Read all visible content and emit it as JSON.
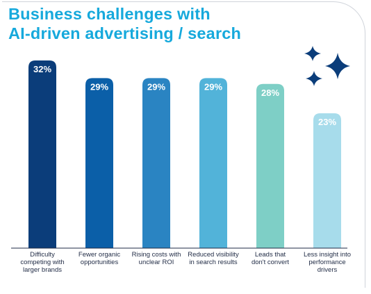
{
  "title_line1": "Business challenges with",
  "title_line2": "AI-driven advertising / search",
  "colors": {
    "title": "#16a9dc",
    "stars": "#0b3d7a",
    "bars": [
      "#0b3d7a",
      "#0b5fa8",
      "#2a84c2",
      "#52b3d9",
      "#7ecfc6",
      "#a7dceb"
    ]
  },
  "icons": [
    "sparkle-icon"
  ],
  "chart_data": {
    "type": "bar",
    "categories": [
      [
        "Difficulty",
        "competing with",
        "larger brands"
      ],
      [
        "Fewer organic",
        "opportunities"
      ],
      [
        "Rising costs with",
        "unclear ROI"
      ],
      [
        "Reduced visibility",
        "in search results"
      ],
      [
        "Leads that",
        "don't convert"
      ],
      [
        "Less insight into",
        "performance",
        "drivers"
      ]
    ],
    "values": [
      32,
      29,
      29,
      29,
      28,
      23
    ],
    "value_labels": [
      "32%",
      "29%",
      "29%",
      "29%",
      "28%",
      "23%"
    ],
    "ylim": [
      0,
      32
    ],
    "grid": false,
    "legend": "none"
  }
}
